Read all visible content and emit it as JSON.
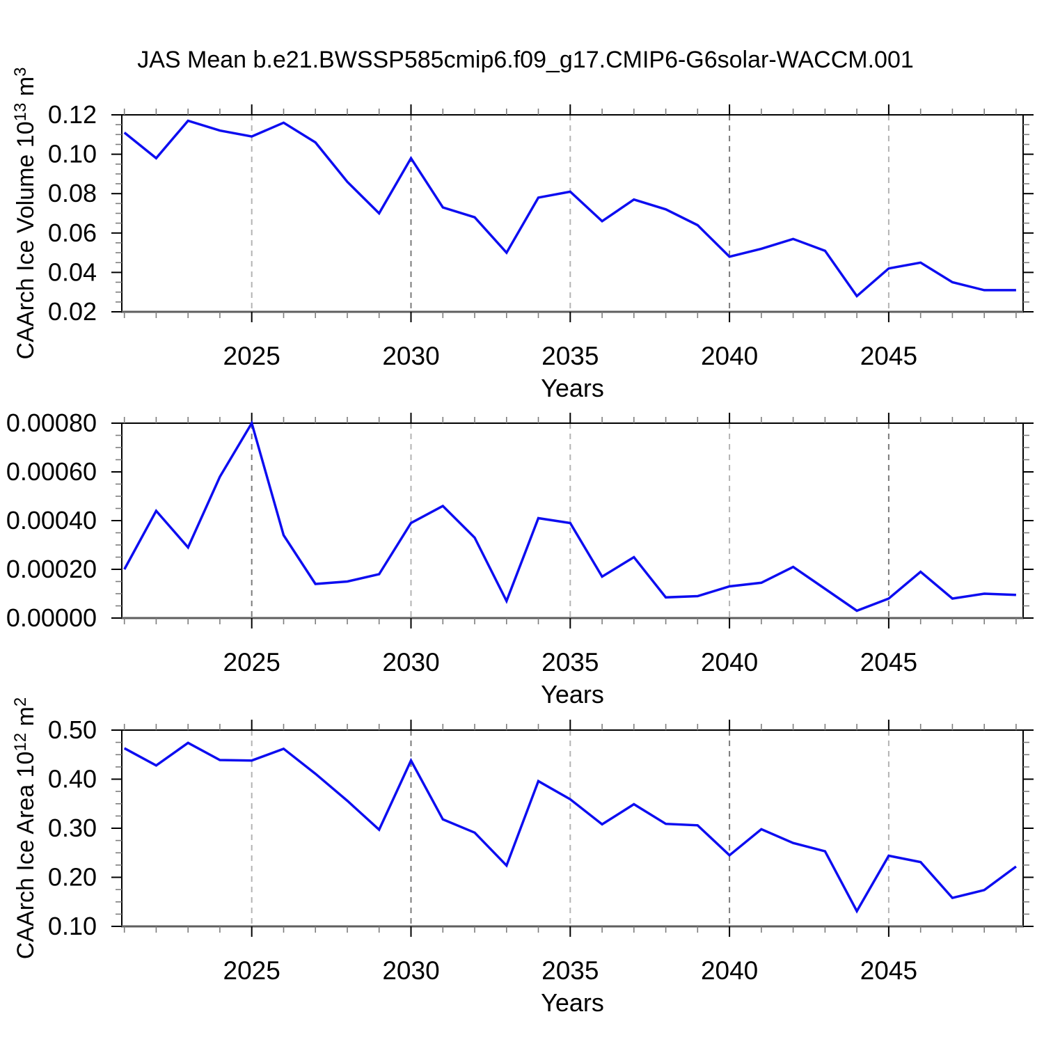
{
  "title": "JAS Mean b.e21.BWSSP585cmip6.f09_g17.CMIP6-G6solar-WACCM.001",
  "line_color": "#0d0df0",
  "years": [
    2021,
    2022,
    2023,
    2024,
    2025,
    2026,
    2027,
    2028,
    2029,
    2030,
    2031,
    2032,
    2033,
    2034,
    2035,
    2036,
    2037,
    2038,
    2039,
    2040,
    2041,
    2042,
    2043,
    2044,
    2045,
    2046,
    2047,
    2048,
    2049
  ],
  "x_axis": {
    "xlim": [
      2020.92,
      2049.22
    ],
    "minor_step": 1,
    "major": [
      {
        "year": 2025,
        "label": "2025"
      },
      {
        "year": 2030,
        "label": "2030"
      },
      {
        "year": 2035,
        "label": "2035"
      },
      {
        "year": 2040,
        "label": "2040"
      },
      {
        "year": 2045,
        "label": "2045"
      }
    ]
  },
  "chart_data": [
    {
      "type": "line",
      "name": "ice-volume",
      "title": "",
      "xlabel": "Years",
      "ylabel": "CAArch Ice Volume 10^13 m^3",
      "ylabel_parts": [
        {
          "t": "CAArch Ice Volume 10"
        },
        {
          "t": "13",
          "sup": true
        },
        {
          "t": " m"
        },
        {
          "t": "3",
          "sup": true
        }
      ],
      "ylim": [
        0.02,
        0.12
      ],
      "grid": true,
      "x": [
        2021,
        2022,
        2023,
        2024,
        2025,
        2026,
        2027,
        2028,
        2029,
        2030,
        2031,
        2032,
        2033,
        2034,
        2035,
        2036,
        2037,
        2038,
        2039,
        2040,
        2041,
        2042,
        2043,
        2044,
        2045,
        2046,
        2047,
        2048,
        2049
      ],
      "values": [
        0.111,
        0.098,
        0.117,
        0.112,
        0.109,
        0.116,
        0.106,
        0.086,
        0.07,
        0.098,
        0.073,
        0.068,
        0.05,
        0.078,
        0.081,
        0.066,
        0.077,
        0.072,
        0.064,
        0.048,
        0.052,
        0.057,
        0.051,
        0.028,
        0.042,
        0.045,
        0.035,
        0.031,
        0.031
      ],
      "yticks": [
        {
          "v": 0.02,
          "label": "0.02"
        },
        {
          "v": 0.04,
          "label": "0.04"
        },
        {
          "v": 0.06,
          "label": "0.06"
        },
        {
          "v": 0.08,
          "label": "0.08"
        },
        {
          "v": 0.1,
          "label": "0.10"
        },
        {
          "v": 0.12,
          "label": "0.12"
        }
      ],
      "yticks_minor": [
        0.025,
        0.03,
        0.035,
        0.045,
        0.05,
        0.055,
        0.065,
        0.07,
        0.075,
        0.085,
        0.09,
        0.095,
        0.105,
        0.11,
        0.115
      ]
    },
    {
      "type": "line",
      "name": "ice-middle",
      "title": "",
      "xlabel": "Years",
      "ylabel": "",
      "ylabel_parts": [],
      "ylim": [
        0.0,
        0.0008
      ],
      "grid": true,
      "x": [
        2021,
        2022,
        2023,
        2024,
        2025,
        2026,
        2027,
        2028,
        2029,
        2030,
        2031,
        2032,
        2033,
        2034,
        2035,
        2036,
        2037,
        2038,
        2039,
        2040,
        2041,
        2042,
        2043,
        2044,
        2045,
        2046,
        2047,
        2048,
        2049
      ],
      "values": [
        0.0002,
        0.00044,
        0.00029,
        0.00058,
        0.0008,
        0.00034,
        0.00014,
        0.00015,
        0.00018,
        0.00039,
        0.00046,
        0.00033,
        7e-05,
        0.00041,
        0.00039,
        0.00017,
        0.00025,
        8.5e-05,
        9e-05,
        0.00013,
        0.000145,
        0.00021,
        0.00012,
        3e-05,
        8e-05,
        0.00019,
        8e-05,
        0.0001,
        9.5e-05
      ],
      "yticks": [
        {
          "v": 0.0,
          "label": "0.00000"
        },
        {
          "v": 0.0002,
          "label": "0.00020"
        },
        {
          "v": 0.0004,
          "label": "0.00040"
        },
        {
          "v": 0.0006,
          "label": "0.00060"
        },
        {
          "v": 0.0008,
          "label": "0.00080"
        }
      ],
      "yticks_minor": [
        5e-05,
        0.0001,
        0.00015,
        0.00025,
        0.0003,
        0.00035,
        0.00045,
        0.0005,
        0.00055,
        0.00065,
        0.0007,
        0.00075
      ]
    },
    {
      "type": "line",
      "name": "ice-area",
      "title": "",
      "xlabel": "Years",
      "ylabel": "CAArch Ice Area 10^12 m^2",
      "ylabel_parts": [
        {
          "t": "CAArch Ice Area 10"
        },
        {
          "t": "12",
          "sup": true
        },
        {
          "t": " m"
        },
        {
          "t": "2",
          "sup": true
        }
      ],
      "ylim": [
        0.1,
        0.5
      ],
      "grid": true,
      "x": [
        2021,
        2022,
        2023,
        2024,
        2025,
        2026,
        2027,
        2028,
        2029,
        2030,
        2031,
        2032,
        2033,
        2034,
        2035,
        2036,
        2037,
        2038,
        2039,
        2040,
        2041,
        2042,
        2043,
        2044,
        2045,
        2046,
        2047,
        2048,
        2049
      ],
      "values": [
        0.463,
        0.428,
        0.474,
        0.439,
        0.438,
        0.462,
        0.411,
        0.356,
        0.297,
        0.438,
        0.318,
        0.291,
        0.224,
        0.396,
        0.359,
        0.308,
        0.349,
        0.309,
        0.306,
        0.245,
        0.298,
        0.27,
        0.253,
        0.131,
        0.244,
        0.231,
        0.158,
        0.174,
        0.222
      ],
      "yticks": [
        {
          "v": 0.1,
          "label": "0.10"
        },
        {
          "v": 0.2,
          "label": "0.20"
        },
        {
          "v": 0.3,
          "label": "0.30"
        },
        {
          "v": 0.4,
          "label": "0.40"
        },
        {
          "v": 0.5,
          "label": "0.50"
        }
      ],
      "yticks_minor": [
        0.125,
        0.15,
        0.175,
        0.225,
        0.25,
        0.275,
        0.325,
        0.35,
        0.375,
        0.425,
        0.45,
        0.475
      ]
    }
  ]
}
